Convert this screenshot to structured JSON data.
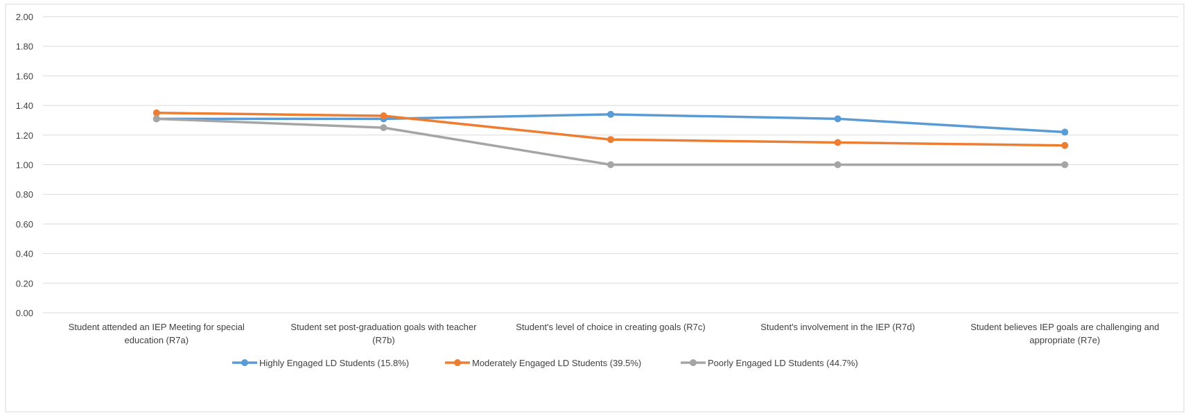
{
  "chart_data": {
    "type": "line",
    "categories": [
      [
        "Student attended an IEP Meeting for special",
        "education (R7a)"
      ],
      [
        "Student set post-graduation goals with teacher",
        "(R7b)"
      ],
      [
        "Student's level of choice in creating goals (R7c)"
      ],
      [
        "Student's involvement in the IEP (R7d)"
      ],
      [
        "Student believes IEP goals are challenging and",
        "appropriate (R7e)"
      ]
    ],
    "ylim": [
      0,
      2
    ],
    "yticks": [
      "0.00",
      "0.20",
      "0.40",
      "0.60",
      "0.80",
      "1.00",
      "1.20",
      "1.40",
      "1.60",
      "1.80",
      "2.00"
    ],
    "grid": true,
    "legend_position": "bottom",
    "series": [
      {
        "name": "Highly Engaged LD Students (15.8%)",
        "color": "#5B9BD5",
        "values": [
          1.31,
          1.31,
          1.34,
          1.31,
          1.22
        ]
      },
      {
        "name": "Moderately Engaged LD Students (39.5%)",
        "color": "#ED7D31",
        "values": [
          1.35,
          1.33,
          1.17,
          1.15,
          1.13
        ]
      },
      {
        "name": "Poorly Engaged LD Students (44.7%)",
        "color": "#A5A5A5",
        "values": [
          1.31,
          1.25,
          1.0,
          1.0,
          1.0
        ]
      }
    ]
  }
}
